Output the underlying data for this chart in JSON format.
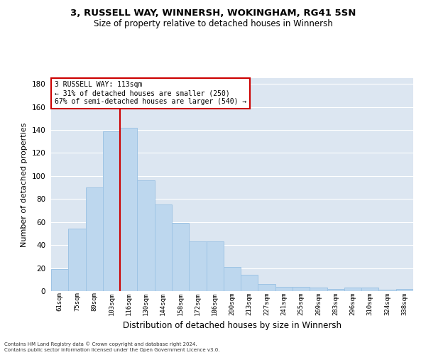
{
  "title_line1": "3, RUSSELL WAY, WINNERSH, WOKINGHAM, RG41 5SN",
  "title_line2": "Size of property relative to detached houses in Winnersh",
  "xlabel": "Distribution of detached houses by size in Winnersh",
  "ylabel": "Number of detached properties",
  "categories": [
    "61sqm",
    "75sqm",
    "89sqm",
    "103sqm",
    "116sqm",
    "130sqm",
    "144sqm",
    "158sqm",
    "172sqm",
    "186sqm",
    "200sqm",
    "213sqm",
    "227sqm",
    "241sqm",
    "255sqm",
    "269sqm",
    "283sqm",
    "296sqm",
    "310sqm",
    "324sqm",
    "338sqm"
  ],
  "values": [
    19,
    54,
    90,
    139,
    142,
    96,
    75,
    59,
    43,
    43,
    21,
    14,
    6,
    4,
    4,
    3,
    2,
    3,
    3,
    1,
    2
  ],
  "bar_color": "#bdd7ee",
  "bar_edge_color": "#9ec4e4",
  "vline_color": "#cc0000",
  "vline_x": 3.5,
  "annotation_text": "3 RUSSELL WAY: 113sqm\n← 31% of detached houses are smaller (250)\n67% of semi-detached houses are larger (540) →",
  "annotation_box_color": "#ffffff",
  "annotation_box_edge_color": "#cc0000",
  "ylim": [
    0,
    185
  ],
  "yticks": [
    0,
    20,
    40,
    60,
    80,
    100,
    120,
    140,
    160,
    180
  ],
  "background_color": "#dce6f1",
  "grid_color": "#ffffff",
  "fig_background": "#ffffff",
  "footer_line1": "Contains HM Land Registry data © Crown copyright and database right 2024.",
  "footer_line2": "Contains public sector information licensed under the Open Government Licence v3.0."
}
